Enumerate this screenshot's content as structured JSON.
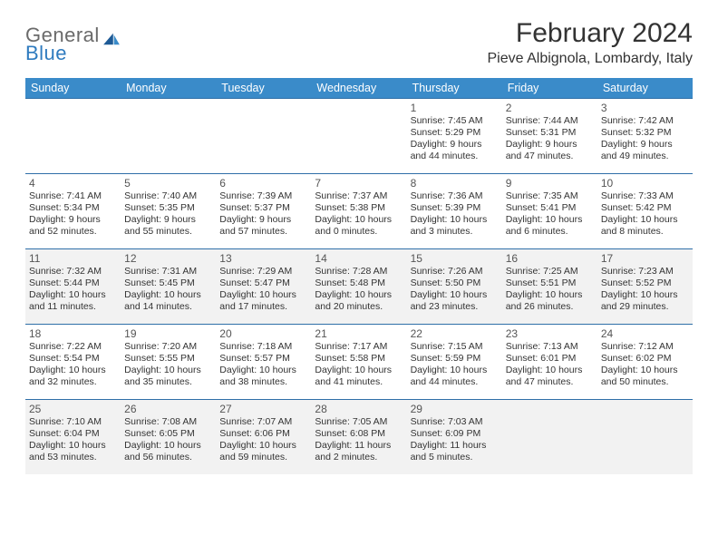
{
  "logo": {
    "line1": "General",
    "line2": "Blue"
  },
  "title": "February 2024",
  "location": "Pieve Albignola, Lombardy, Italy",
  "header_bg": "#3a8bc9",
  "border_color": "#2f6fa8",
  "shade_color": "#f2f2f2",
  "day_names": [
    "Sunday",
    "Monday",
    "Tuesday",
    "Wednesday",
    "Thursday",
    "Friday",
    "Saturday"
  ],
  "weeks": [
    [
      {
        "day": "",
        "sunrise": "",
        "sunset": "",
        "daylight": ""
      },
      {
        "day": "",
        "sunrise": "",
        "sunset": "",
        "daylight": ""
      },
      {
        "day": "",
        "sunrise": "",
        "sunset": "",
        "daylight": ""
      },
      {
        "day": "",
        "sunrise": "",
        "sunset": "",
        "daylight": ""
      },
      {
        "day": "1",
        "sunrise": "Sunrise: 7:45 AM",
        "sunset": "Sunset: 5:29 PM",
        "daylight": "Daylight: 9 hours and 44 minutes."
      },
      {
        "day": "2",
        "sunrise": "Sunrise: 7:44 AM",
        "sunset": "Sunset: 5:31 PM",
        "daylight": "Daylight: 9 hours and 47 minutes."
      },
      {
        "day": "3",
        "sunrise": "Sunrise: 7:42 AM",
        "sunset": "Sunset: 5:32 PM",
        "daylight": "Daylight: 9 hours and 49 minutes."
      }
    ],
    [
      {
        "day": "4",
        "sunrise": "Sunrise: 7:41 AM",
        "sunset": "Sunset: 5:34 PM",
        "daylight": "Daylight: 9 hours and 52 minutes."
      },
      {
        "day": "5",
        "sunrise": "Sunrise: 7:40 AM",
        "sunset": "Sunset: 5:35 PM",
        "daylight": "Daylight: 9 hours and 55 minutes."
      },
      {
        "day": "6",
        "sunrise": "Sunrise: 7:39 AM",
        "sunset": "Sunset: 5:37 PM",
        "daylight": "Daylight: 9 hours and 57 minutes."
      },
      {
        "day": "7",
        "sunrise": "Sunrise: 7:37 AM",
        "sunset": "Sunset: 5:38 PM",
        "daylight": "Daylight: 10 hours and 0 minutes."
      },
      {
        "day": "8",
        "sunrise": "Sunrise: 7:36 AM",
        "sunset": "Sunset: 5:39 PM",
        "daylight": "Daylight: 10 hours and 3 minutes."
      },
      {
        "day": "9",
        "sunrise": "Sunrise: 7:35 AM",
        "sunset": "Sunset: 5:41 PM",
        "daylight": "Daylight: 10 hours and 6 minutes."
      },
      {
        "day": "10",
        "sunrise": "Sunrise: 7:33 AM",
        "sunset": "Sunset: 5:42 PM",
        "daylight": "Daylight: 10 hours and 8 minutes."
      }
    ],
    [
      {
        "day": "11",
        "sunrise": "Sunrise: 7:32 AM",
        "sunset": "Sunset: 5:44 PM",
        "daylight": "Daylight: 10 hours and 11 minutes."
      },
      {
        "day": "12",
        "sunrise": "Sunrise: 7:31 AM",
        "sunset": "Sunset: 5:45 PM",
        "daylight": "Daylight: 10 hours and 14 minutes."
      },
      {
        "day": "13",
        "sunrise": "Sunrise: 7:29 AM",
        "sunset": "Sunset: 5:47 PM",
        "daylight": "Daylight: 10 hours and 17 minutes."
      },
      {
        "day": "14",
        "sunrise": "Sunrise: 7:28 AM",
        "sunset": "Sunset: 5:48 PM",
        "daylight": "Daylight: 10 hours and 20 minutes."
      },
      {
        "day": "15",
        "sunrise": "Sunrise: 7:26 AM",
        "sunset": "Sunset: 5:50 PM",
        "daylight": "Daylight: 10 hours and 23 minutes."
      },
      {
        "day": "16",
        "sunrise": "Sunrise: 7:25 AM",
        "sunset": "Sunset: 5:51 PM",
        "daylight": "Daylight: 10 hours and 26 minutes."
      },
      {
        "day": "17",
        "sunrise": "Sunrise: 7:23 AM",
        "sunset": "Sunset: 5:52 PM",
        "daylight": "Daylight: 10 hours and 29 minutes."
      }
    ],
    [
      {
        "day": "18",
        "sunrise": "Sunrise: 7:22 AM",
        "sunset": "Sunset: 5:54 PM",
        "daylight": "Daylight: 10 hours and 32 minutes."
      },
      {
        "day": "19",
        "sunrise": "Sunrise: 7:20 AM",
        "sunset": "Sunset: 5:55 PM",
        "daylight": "Daylight: 10 hours and 35 minutes."
      },
      {
        "day": "20",
        "sunrise": "Sunrise: 7:18 AM",
        "sunset": "Sunset: 5:57 PM",
        "daylight": "Daylight: 10 hours and 38 minutes."
      },
      {
        "day": "21",
        "sunrise": "Sunrise: 7:17 AM",
        "sunset": "Sunset: 5:58 PM",
        "daylight": "Daylight: 10 hours and 41 minutes."
      },
      {
        "day": "22",
        "sunrise": "Sunrise: 7:15 AM",
        "sunset": "Sunset: 5:59 PM",
        "daylight": "Daylight: 10 hours and 44 minutes."
      },
      {
        "day": "23",
        "sunrise": "Sunrise: 7:13 AM",
        "sunset": "Sunset: 6:01 PM",
        "daylight": "Daylight: 10 hours and 47 minutes."
      },
      {
        "day": "24",
        "sunrise": "Sunrise: 7:12 AM",
        "sunset": "Sunset: 6:02 PM",
        "daylight": "Daylight: 10 hours and 50 minutes."
      }
    ],
    [
      {
        "day": "25",
        "sunrise": "Sunrise: 7:10 AM",
        "sunset": "Sunset: 6:04 PM",
        "daylight": "Daylight: 10 hours and 53 minutes."
      },
      {
        "day": "26",
        "sunrise": "Sunrise: 7:08 AM",
        "sunset": "Sunset: 6:05 PM",
        "daylight": "Daylight: 10 hours and 56 minutes."
      },
      {
        "day": "27",
        "sunrise": "Sunrise: 7:07 AM",
        "sunset": "Sunset: 6:06 PM",
        "daylight": "Daylight: 10 hours and 59 minutes."
      },
      {
        "day": "28",
        "sunrise": "Sunrise: 7:05 AM",
        "sunset": "Sunset: 6:08 PM",
        "daylight": "Daylight: 11 hours and 2 minutes."
      },
      {
        "day": "29",
        "sunrise": "Sunrise: 7:03 AM",
        "sunset": "Sunset: 6:09 PM",
        "daylight": "Daylight: 11 hours and 5 minutes."
      },
      {
        "day": "",
        "sunrise": "",
        "sunset": "",
        "daylight": ""
      },
      {
        "day": "",
        "sunrise": "",
        "sunset": "",
        "daylight": ""
      }
    ]
  ],
  "shaded_weeks": [
    2,
    4
  ]
}
